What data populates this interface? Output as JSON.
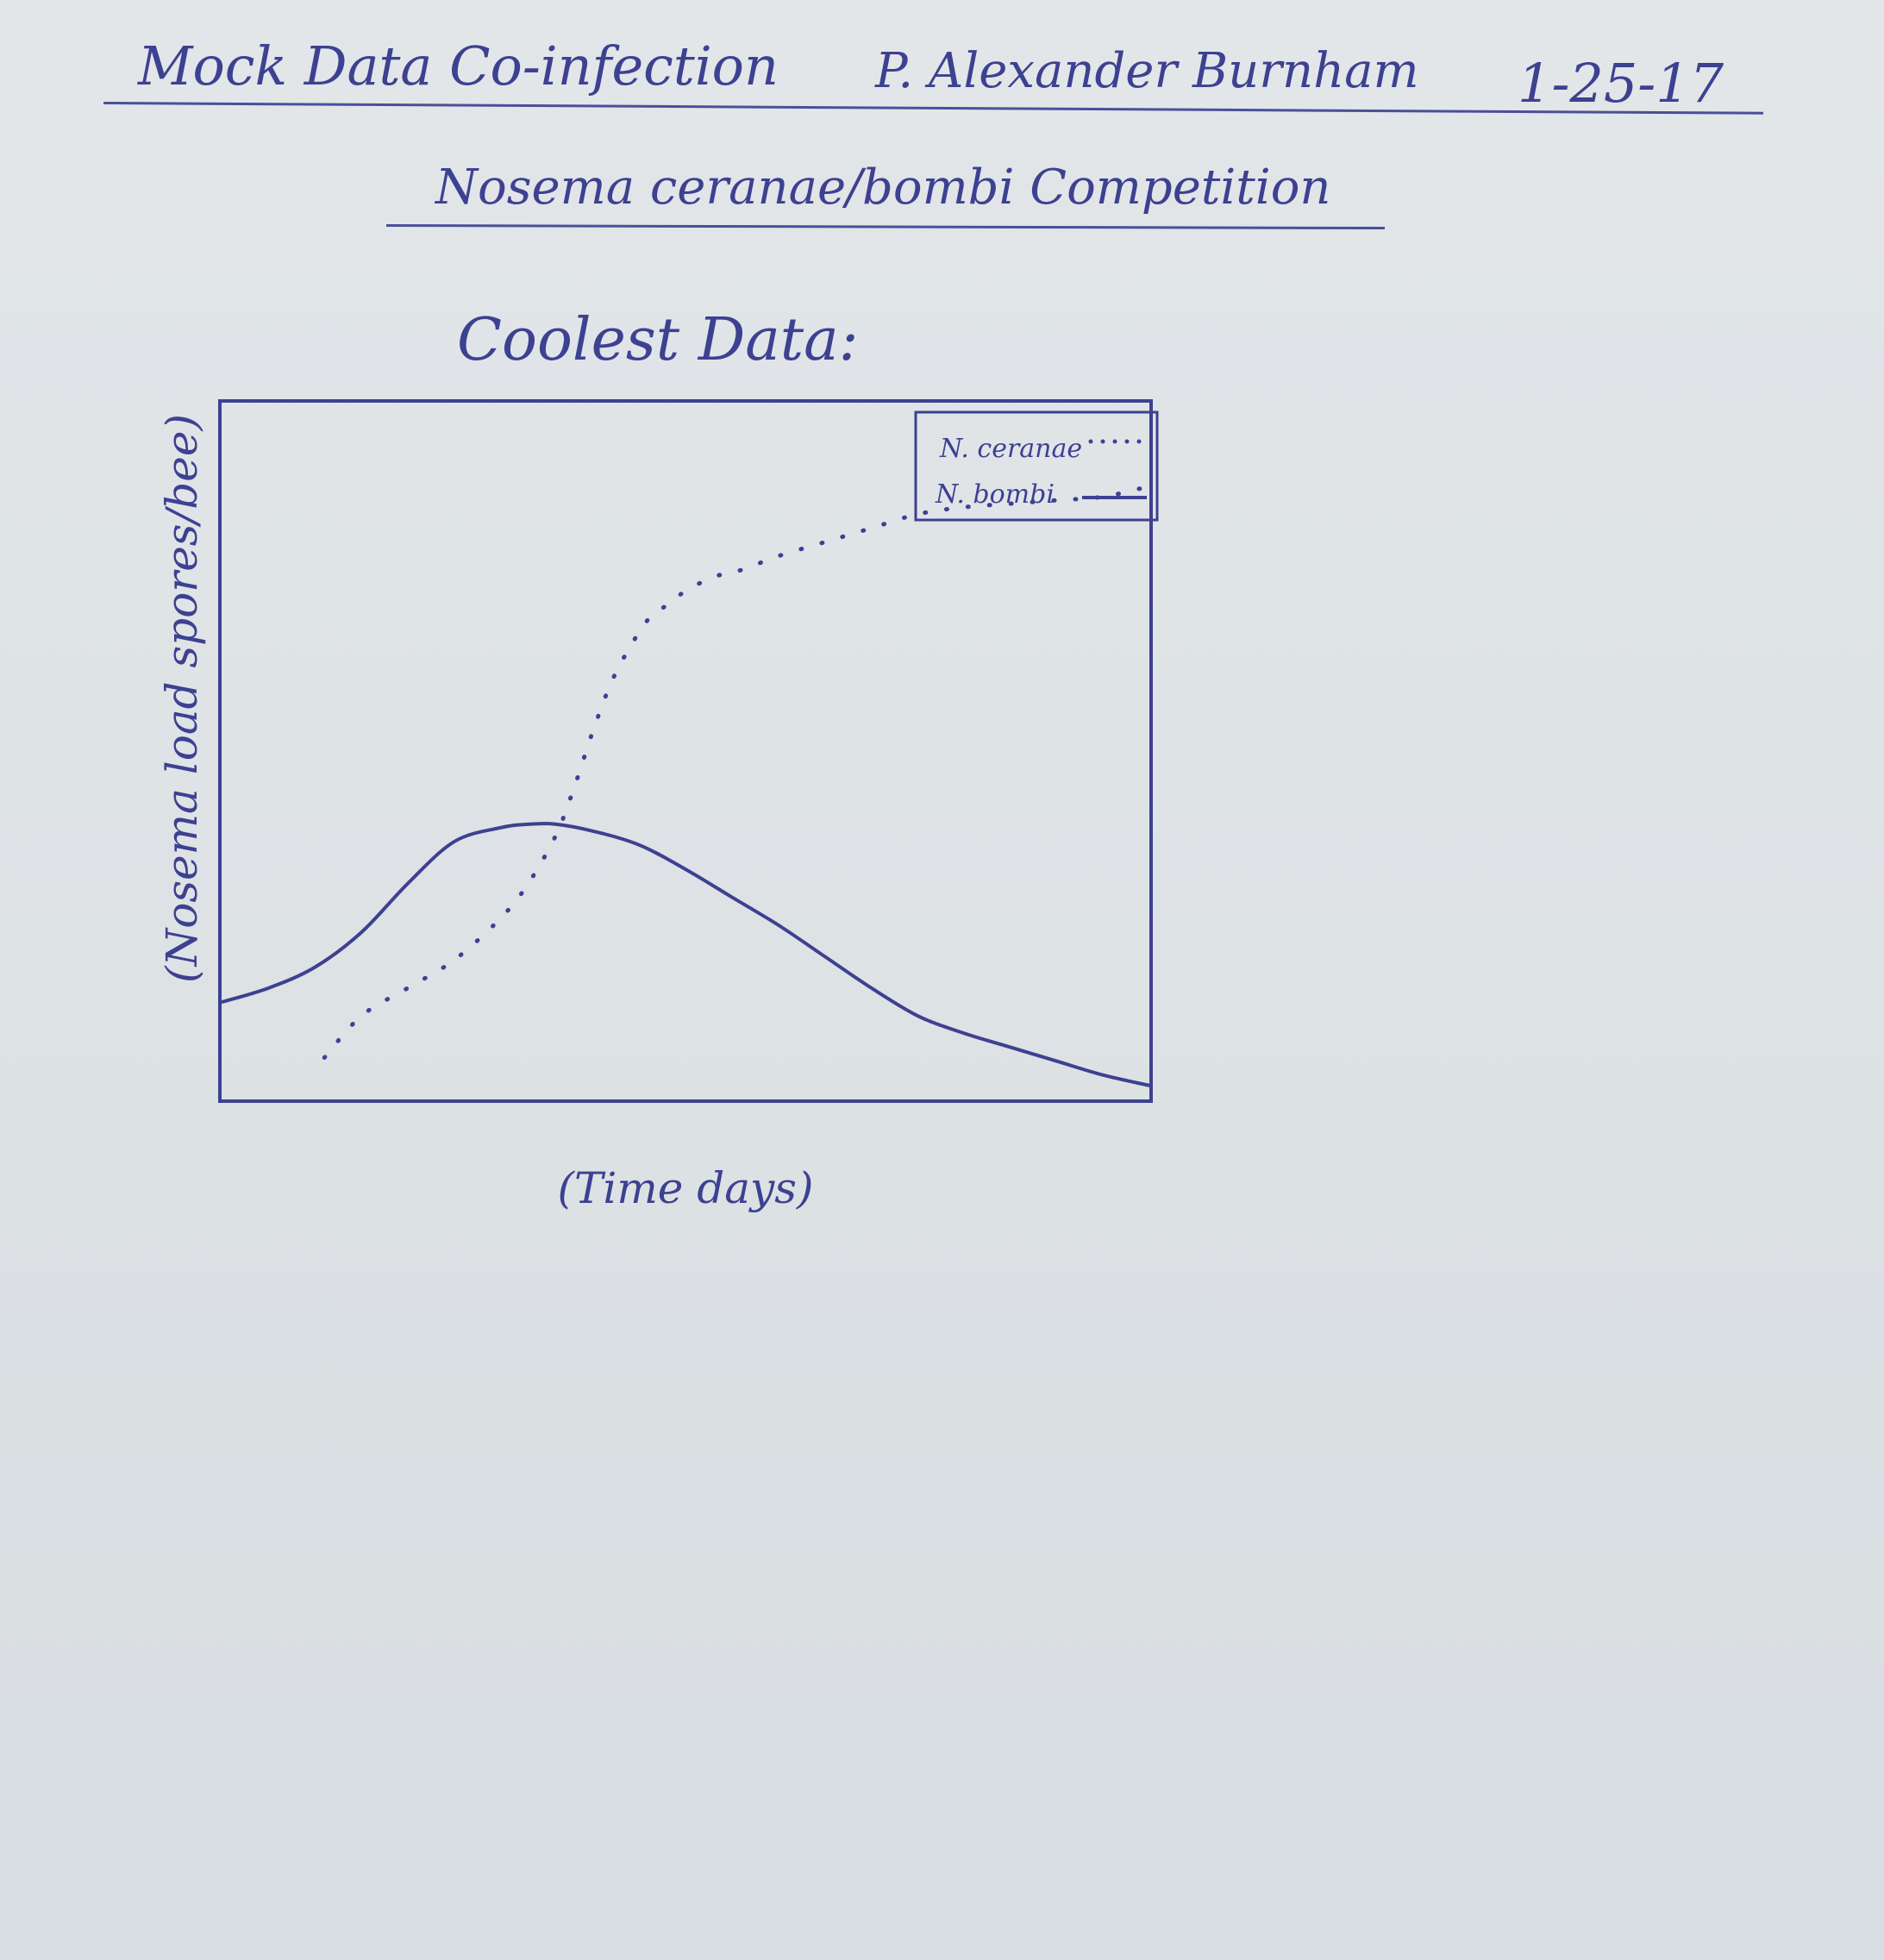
{
  "header": {
    "title": "Mock Data Co-infection",
    "author": "P. Alexander Burnham",
    "date": "1-25-17"
  },
  "subtitle": "Nosema ceranae/bombi Competition",
  "section_title": "Coolest Data:",
  "colors": {
    "ink": "#3d4191",
    "paper": "#dfe3e6"
  },
  "chart_data": {
    "type": "line",
    "title": "",
    "xlabel": "(Time days)",
    "ylabel": "(Nosema load spores/bee)",
    "xlim": [
      0,
      100
    ],
    "ylim": [
      0,
      100
    ],
    "grid": false,
    "legend_position": "top-right",
    "series": [
      {
        "name": "N. ceranae",
        "style": "dotted",
        "x": [
          11,
          15,
          20,
          25,
          30,
          33,
          36,
          38,
          40,
          42,
          44,
          46,
          48,
          50,
          53,
          56,
          60,
          65,
          70,
          75,
          80,
          85,
          90,
          95,
          100
        ],
        "y": [
          6,
          12,
          16,
          20,
          26,
          31,
          38,
          45,
          53,
          60,
          65,
          69,
          71,
          73,
          75,
          76,
          78,
          80,
          82,
          84,
          85,
          85.5,
          86,
          86.5,
          88
        ]
      },
      {
        "name": "N. bombi",
        "style": "solid",
        "x": [
          0,
          5,
          10,
          15,
          20,
          25,
          30,
          33,
          36,
          40,
          45,
          50,
          55,
          60,
          65,
          70,
          75,
          80,
          85,
          90,
          95,
          100
        ],
        "y": [
          14,
          16,
          19,
          24,
          31,
          37,
          39,
          39.5,
          39.5,
          38.5,
          36.5,
          33,
          29,
          25,
          20.5,
          16,
          12,
          9.5,
          7.5,
          5.5,
          3.5,
          2
        ]
      }
    ]
  }
}
